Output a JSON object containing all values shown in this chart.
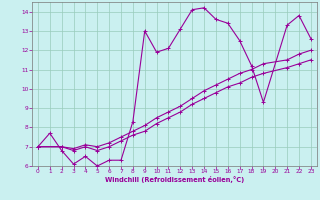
{
  "title": "",
  "xlabel": "Windchill (Refroidissement éolien,°C)",
  "bg_color": "#caf0f0",
  "line_color": "#990099",
  "grid_color": "#99ccbb",
  "xlim": [
    -0.5,
    23.5
  ],
  "ylim": [
    6,
    14.5
  ],
  "xticks": [
    0,
    1,
    2,
    3,
    4,
    5,
    6,
    7,
    8,
    9,
    10,
    11,
    12,
    13,
    14,
    15,
    16,
    17,
    18,
    19,
    20,
    21,
    22,
    23
  ],
  "yticks": [
    6,
    7,
    8,
    9,
    10,
    11,
    12,
    13,
    14
  ],
  "line0_x": [
    0,
    1,
    2,
    3,
    4,
    5,
    6,
    7,
    8,
    9,
    10,
    11,
    12,
    13,
    14,
    15,
    16,
    17,
    18,
    19,
    21,
    22,
    23
  ],
  "line0_y": [
    7.0,
    7.7,
    6.8,
    6.1,
    6.5,
    6.0,
    6.3,
    6.3,
    8.3,
    13.0,
    11.9,
    12.1,
    13.1,
    14.1,
    14.2,
    13.6,
    13.4,
    12.5,
    11.2,
    9.3,
    13.3,
    13.8,
    12.6
  ],
  "line1_x": [
    0,
    2,
    3,
    4,
    5,
    6,
    7,
    8,
    9,
    10,
    11,
    12,
    13,
    14,
    15,
    16,
    17,
    18,
    19,
    21,
    22,
    23
  ],
  "line1_y": [
    7.0,
    7.0,
    6.9,
    7.1,
    7.0,
    7.2,
    7.5,
    7.8,
    8.1,
    8.5,
    8.8,
    9.1,
    9.5,
    9.9,
    10.2,
    10.5,
    10.8,
    11.0,
    11.3,
    11.5,
    11.8,
    12.0
  ],
  "line2_x": [
    0,
    2,
    3,
    4,
    5,
    6,
    7,
    8,
    9,
    10,
    11,
    12,
    13,
    14,
    15,
    16,
    17,
    18,
    19,
    21,
    22,
    23
  ],
  "line2_y": [
    7.0,
    7.0,
    6.8,
    7.0,
    6.8,
    7.0,
    7.3,
    7.6,
    7.8,
    8.2,
    8.5,
    8.8,
    9.2,
    9.5,
    9.8,
    10.1,
    10.3,
    10.6,
    10.8,
    11.1,
    11.3,
    11.5
  ]
}
